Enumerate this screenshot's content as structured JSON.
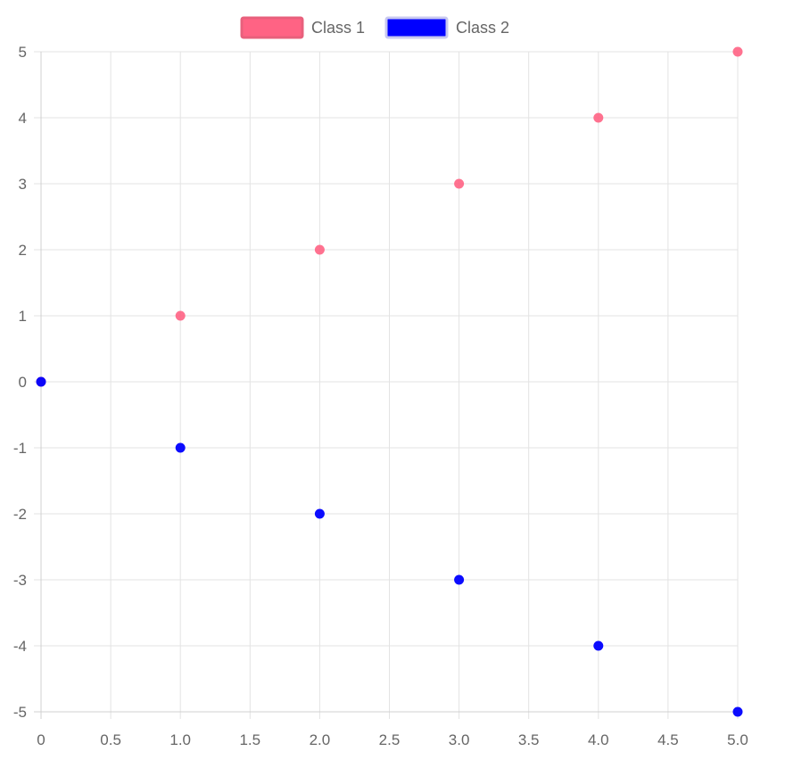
{
  "chart_data": {
    "type": "scatter",
    "legend_position": "top",
    "grid": true,
    "xlim": [
      0,
      5
    ],
    "ylim": [
      -5,
      5
    ],
    "x_ticks": [
      "0",
      "0.5",
      "1.0",
      "1.5",
      "2.0",
      "2.5",
      "3.0",
      "3.5",
      "4.0",
      "4.5",
      "5.0"
    ],
    "x_tick_values": [
      0,
      0.5,
      1,
      1.5,
      2,
      2.5,
      3,
      3.5,
      4,
      4.5,
      5
    ],
    "y_ticks": [
      "5",
      "4",
      "3",
      "2",
      "1",
      "0",
      "-1",
      "-2",
      "-3",
      "-4",
      "-5"
    ],
    "y_tick_values": [
      5,
      4,
      3,
      2,
      1,
      0,
      -1,
      -2,
      -3,
      -4,
      -5
    ],
    "series": [
      {
        "name": "Class 1",
        "color": "#ff6384",
        "fill": "#ff6384",
        "border": "#e8607c",
        "points": [
          {
            "x": 0,
            "y": 0
          },
          {
            "x": 1,
            "y": 1
          },
          {
            "x": 2,
            "y": 2
          },
          {
            "x": 3,
            "y": 3
          },
          {
            "x": 4,
            "y": 4
          },
          {
            "x": 5,
            "y": 5
          }
        ]
      },
      {
        "name": "Class 2",
        "color": "#0000ff",
        "fill": "#0000ff",
        "border": "#c8c8f0",
        "points": [
          {
            "x": 0,
            "y": 0
          },
          {
            "x": 1,
            "y": -1
          },
          {
            "x": 2,
            "y": -2
          },
          {
            "x": 3,
            "y": -3
          },
          {
            "x": 4,
            "y": -4
          },
          {
            "x": 5,
            "y": -5
          }
        ]
      }
    ]
  }
}
